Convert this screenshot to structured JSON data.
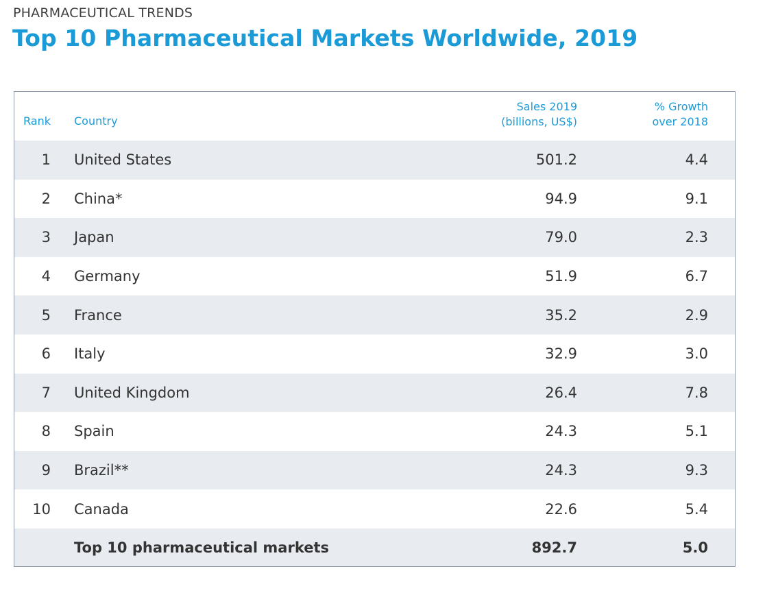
{
  "header": {
    "eyebrow": "PHARMACEUTICAL TRENDS",
    "title": "Top 10 Pharmaceutical Markets Worldwide, 2019"
  },
  "table": {
    "columns": {
      "rank": "Rank",
      "country": "Country",
      "sales_line1": "Sales 2019",
      "sales_line2": "(billions, US$)",
      "growth_line1": "% Growth",
      "growth_line2": "over 2018"
    },
    "rows": [
      {
        "rank": "1",
        "country": "United States",
        "sales": "501.2",
        "growth": "4.4"
      },
      {
        "rank": "2",
        "country": "China*",
        "sales": "94.9",
        "growth": "9.1"
      },
      {
        "rank": "3",
        "country": "Japan",
        "sales": "79.0",
        "growth": "2.3"
      },
      {
        "rank": "4",
        "country": "Germany",
        "sales": "51.9",
        "growth": "6.7"
      },
      {
        "rank": "5",
        "country": "France",
        "sales": "35.2",
        "growth": "2.9"
      },
      {
        "rank": "6",
        "country": "Italy",
        "sales": "32.9",
        "growth": "3.0"
      },
      {
        "rank": "7",
        "country": "United Kingdom",
        "sales": "26.4",
        "growth": "7.8"
      },
      {
        "rank": "8",
        "country": "Spain",
        "sales": "24.3",
        "growth": "5.1"
      },
      {
        "rank": "9",
        "country": "Brazil**",
        "sales": "24.3",
        "growth": "9.3"
      },
      {
        "rank": "10",
        "country": "Canada",
        "sales": "22.6",
        "growth": "5.4"
      }
    ],
    "total": {
      "label": "Top 10 pharmaceutical markets",
      "sales": "892.7",
      "growth": "5.0"
    }
  },
  "colors": {
    "accent": "#1a9bd7",
    "row_shade": "#e8ebef",
    "border": "#8b9aa6",
    "text": "#333333"
  }
}
